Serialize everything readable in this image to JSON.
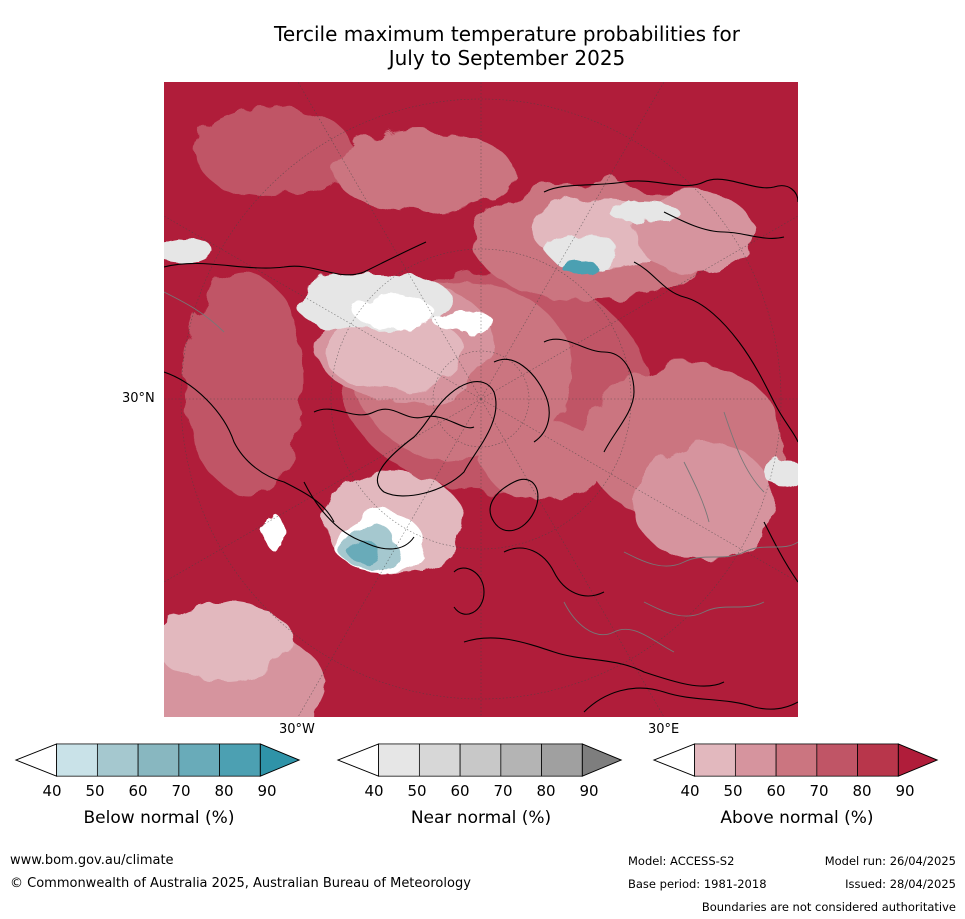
{
  "title_line1": "Tercile maximum temperature probabilities for",
  "title_line2": "July to September 2025",
  "map": {
    "lat_label": "30°N",
    "lon_labels": {
      "west": "30°W",
      "east": "30°E"
    }
  },
  "colorbars": [
    {
      "label": "Below normal (%)",
      "ticks": [
        "40",
        "50",
        "60",
        "70",
        "80",
        "90"
      ],
      "colors": [
        "#ffffff",
        "#c9e2e8",
        "#a5c8cf",
        "#88b7c0",
        "#69abb9",
        "#4ca0b2",
        "#2f93a8"
      ]
    },
    {
      "label": "Near normal (%)",
      "ticks": [
        "40",
        "50",
        "60",
        "70",
        "80",
        "90"
      ],
      "colors": [
        "#ffffff",
        "#e6e6e6",
        "#d7d7d7",
        "#c8c8c8",
        "#b4b4b4",
        "#a0a0a0",
        "#7e7e7e"
      ]
    },
    {
      "label": "Above normal (%)",
      "ticks": [
        "40",
        "50",
        "60",
        "70",
        "80",
        "90"
      ],
      "colors": [
        "#ffffff",
        "#e2b8be",
        "#d6949e",
        "#cb7580",
        "#c05566",
        "#b8364b",
        "#b01d3a"
      ]
    }
  ],
  "footer": {
    "url": "www.bom.gov.au/climate",
    "copyright": "© Commonwealth of Australia 2025, Australian Bureau of Meteorology",
    "model": "Model: ACCESS-S2",
    "model_run": "Model run: 26/04/2025",
    "base_period": "Base period: 1981-2018",
    "issued": "Issued: 28/04/2025",
    "disclaimer": "Boundaries are not considered authoritative"
  }
}
